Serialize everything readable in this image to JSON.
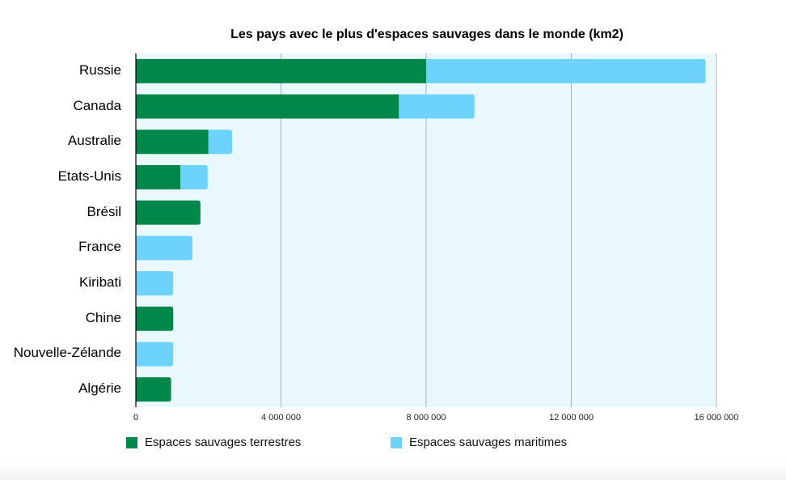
{
  "chart_data": {
    "type": "bar",
    "orientation": "horizontal",
    "stacked": true,
    "title": "Les pays avec le plus d'espaces sauvages dans le monde (km2)",
    "categories": [
      "Russie",
      "Canada",
      "Australie",
      "Etats-Unis",
      "Brésil",
      "France",
      "Kiribati",
      "Chine",
      "Nouvelle-Zélande",
      "Algérie"
    ],
    "series": [
      {
        "name": "Espaces sauvages terrestres",
        "color": "#00874a",
        "values": [
          8000000,
          7250000,
          2000000,
          1230000,
          1780000,
          0,
          0,
          1030000,
          0,
          970000
        ]
      },
      {
        "name": "Espaces sauvages maritimes",
        "color": "#6dd3fd",
        "values": [
          7700000,
          2080000,
          650000,
          750000,
          0,
          1560000,
          1030000,
          0,
          1030000,
          0
        ]
      }
    ],
    "xlim": [
      0,
      16000000
    ],
    "xticks": [
      0,
      4000000,
      8000000,
      12000000,
      16000000
    ],
    "xtick_labels": [
      "0",
      "4 000 000",
      "8 000 000",
      "12 000 000",
      "16 000 000"
    ],
    "grid": true,
    "plot_background": "#e8f8fd",
    "legend_position": "bottom"
  }
}
